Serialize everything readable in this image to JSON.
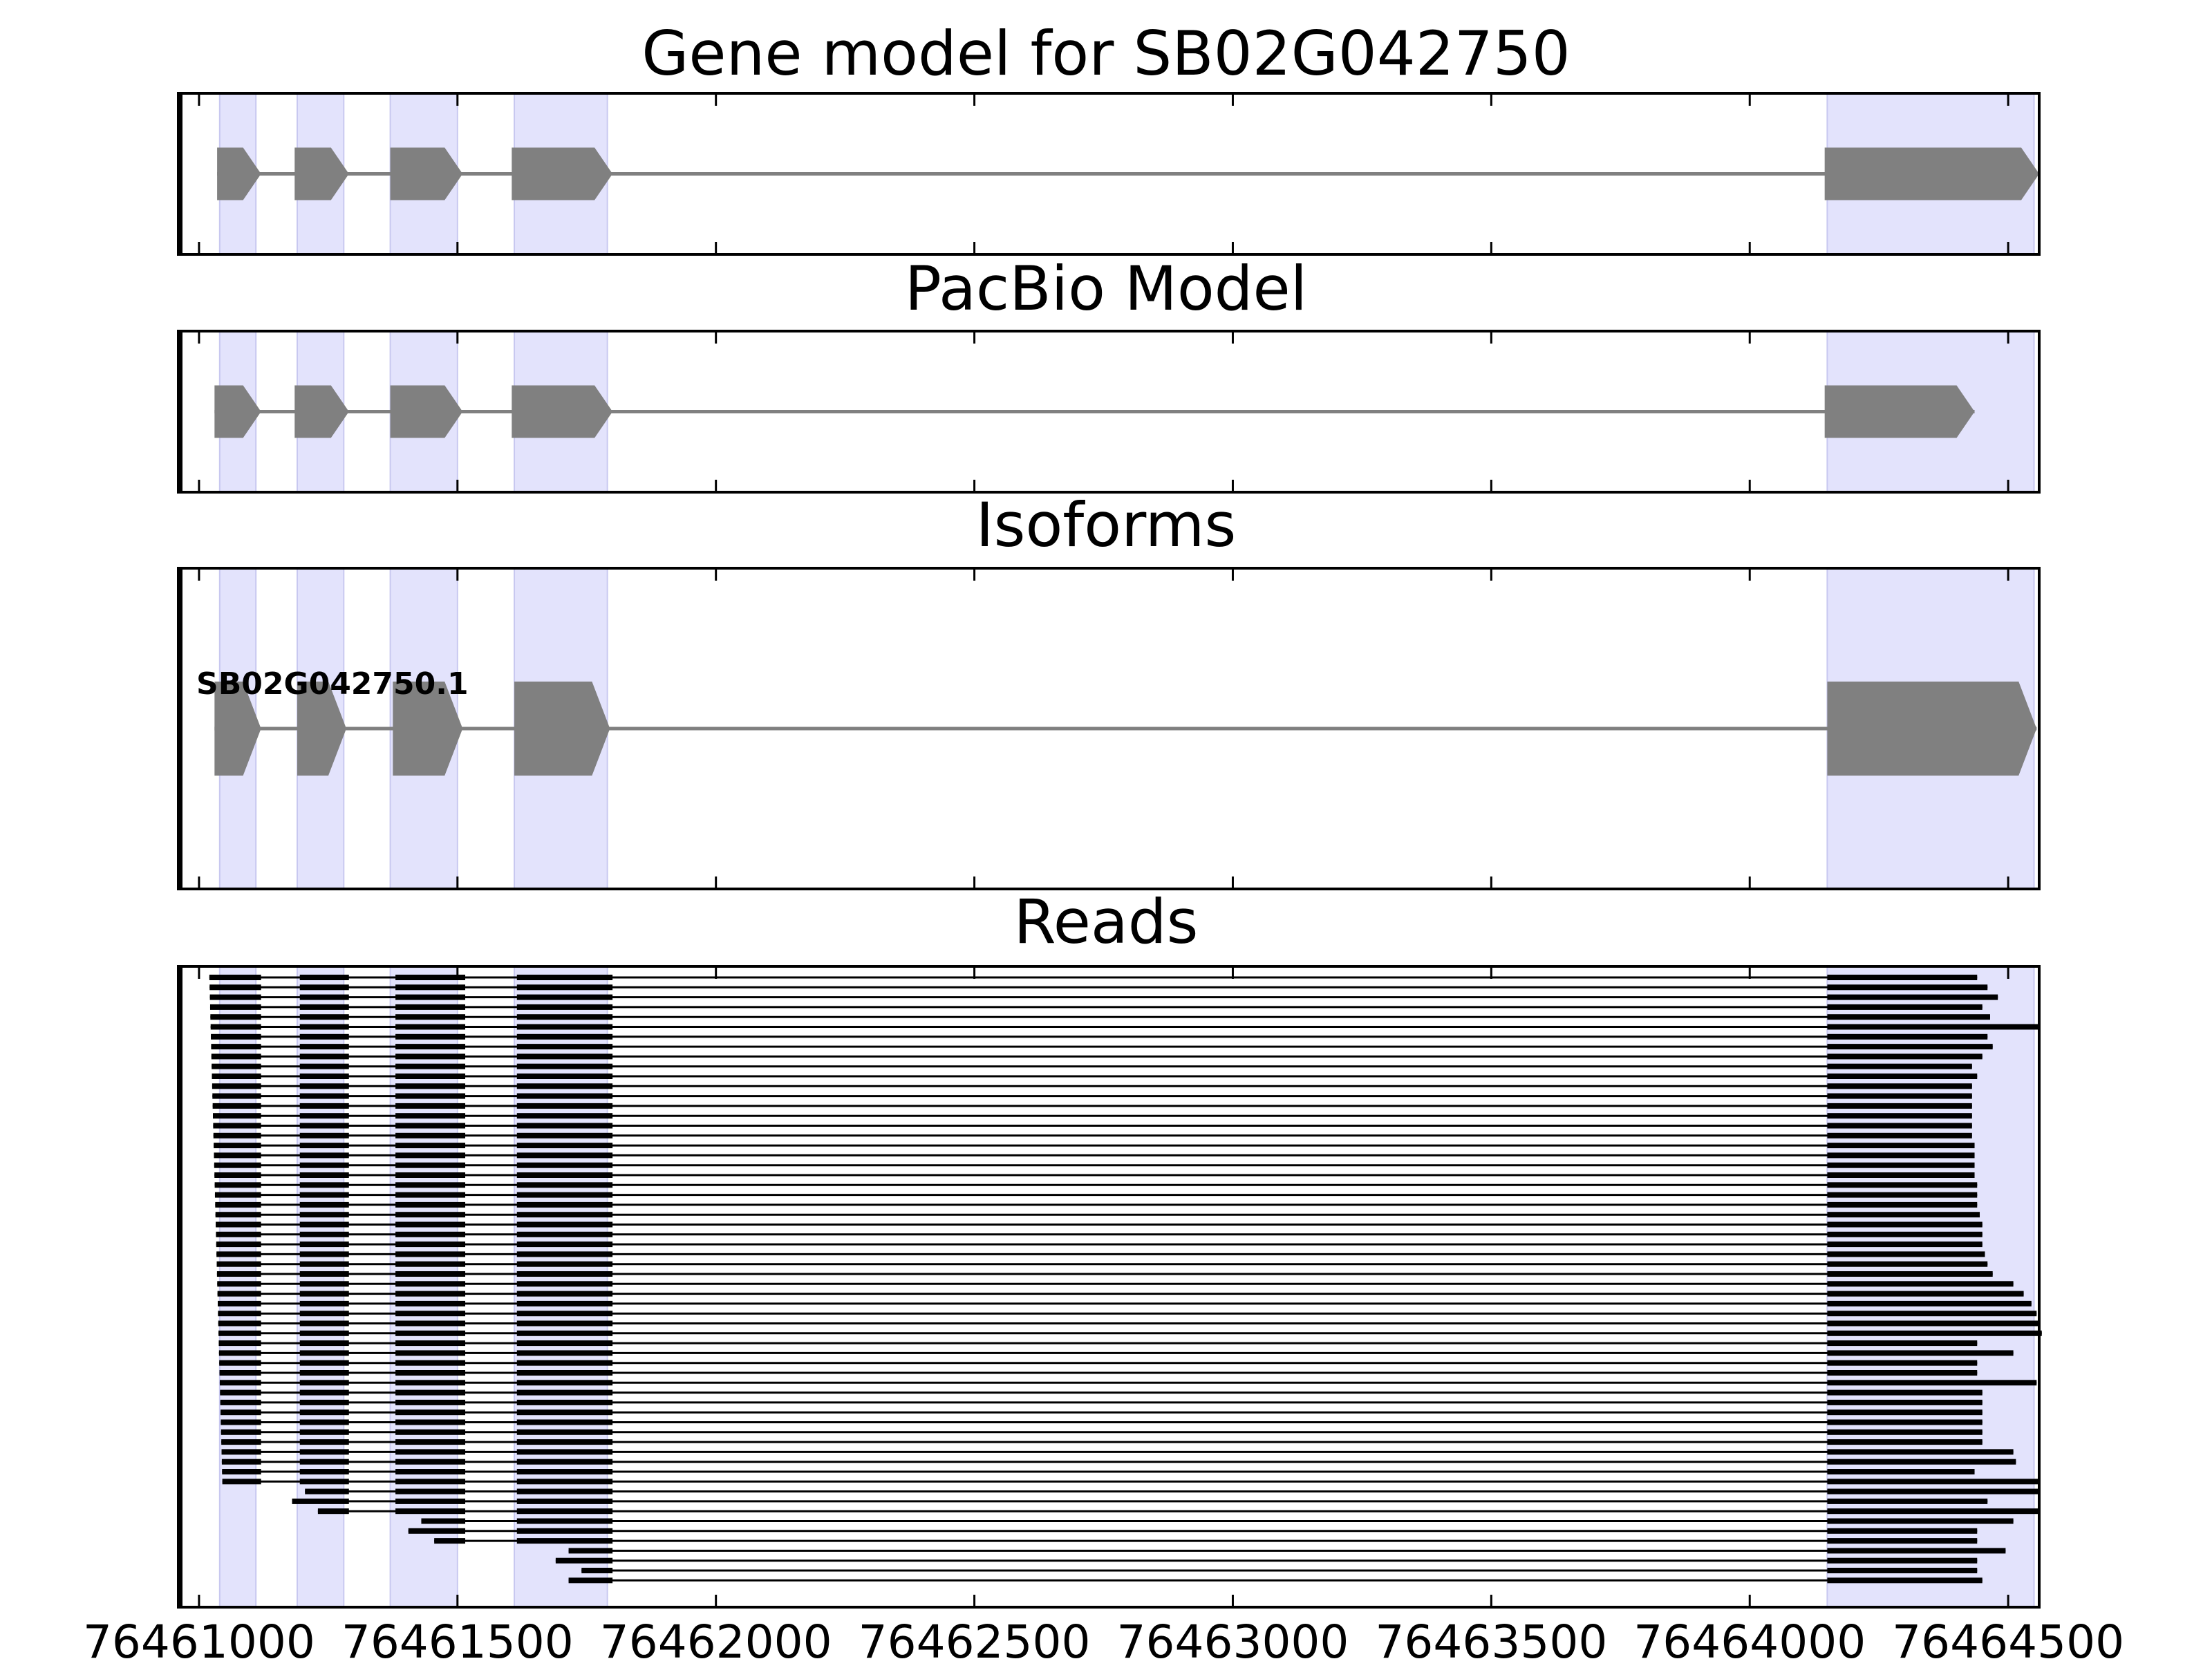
{
  "figure": {
    "panels": [
      {
        "id": "gene-model",
        "title": "Gene model for SB02G042750"
      },
      {
        "id": "pacbio-model",
        "title": "PacBio Model"
      },
      {
        "id": "isoforms",
        "title": "Isoforms"
      },
      {
        "id": "reads",
        "title": "Reads"
      }
    ],
    "x_axis": {
      "tick_values": [
        76461000,
        76461500,
        76462000,
        76462500,
        76463000,
        76463500,
        76464000,
        76464500
      ],
      "tick_labels": [
        "76461000",
        "76461500",
        "76462000",
        "76462500",
        "76463000",
        "76463500",
        "76464000",
        "76464500"
      ]
    },
    "isoform_label": "SB02G042750.1"
  },
  "chart_data": {
    "type": "gene-structure",
    "xlim": [
      76460960,
      76464560
    ],
    "colors": {
      "exon": "#808080",
      "intron": "#808080",
      "highlight": "#e3e3fc",
      "read": "#000000"
    },
    "exon_highlights": [
      [
        76461040,
        76461110
      ],
      [
        76461190,
        76461280
      ],
      [
        76461370,
        76461500
      ],
      [
        76461610,
        76461790
      ],
      [
        76464150,
        76464550
      ]
    ],
    "gene_model": {
      "exons": [
        [
          76461035,
          76461120
        ],
        [
          76461185,
          76461290
        ],
        [
          76461370,
          76461510
        ],
        [
          76461605,
          76461800
        ],
        [
          76464145,
          76464560
        ]
      ]
    },
    "pacbio_model": {
      "exons": [
        [
          76461030,
          76461120
        ],
        [
          76461185,
          76461290
        ],
        [
          76461370,
          76461510
        ],
        [
          76461605,
          76461800
        ],
        [
          76464145,
          76464435
        ]
      ]
    },
    "isoforms": [
      {
        "name": "SB02G042750.1",
        "exons": [
          [
            76461030,
            76461120
          ],
          [
            76461190,
            76461285
          ],
          [
            76461375,
            76461510
          ],
          [
            76461610,
            76461795
          ],
          [
            76464150,
            76464555
          ]
        ]
      }
    ],
    "reads": {
      "row_count": 62,
      "end_positions": [
        76464440,
        76464460,
        76464480,
        76464450,
        76464465,
        76464560,
        76464460,
        76464470,
        76464450,
        76464430,
        76464440,
        76464430,
        76464430,
        76464430,
        76464430,
        76464430,
        76464430,
        76464435,
        76464435,
        76464435,
        76464435,
        76464440,
        76464440,
        76464440,
        76464445,
        76464450,
        76464450,
        76464450,
        76464455,
        76464460,
        76464470,
        76464510,
        76464530,
        76464545,
        76464555,
        76464560,
        76464565,
        76464440,
        76464510,
        76464440,
        76464440,
        76464555,
        76464450,
        76464450,
        76464450,
        76464450,
        76464450,
        76464450,
        76464510,
        76464515,
        76464435,
        76464560,
        76464560,
        76464460,
        76464560,
        76464510,
        76464440,
        76464440,
        76464495,
        76464440,
        76464440,
        76464450
      ]
    }
  }
}
